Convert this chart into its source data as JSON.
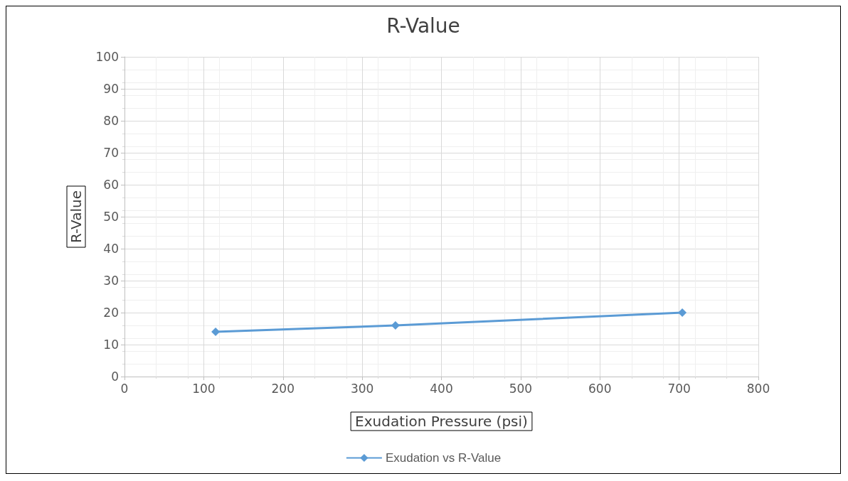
{
  "chart_data": {
    "type": "line",
    "title": "R-Value",
    "xlabel": "Exudation Pressure (psi)",
    "ylabel": "R-Value",
    "x": [
      115,
      342,
      704
    ],
    "series": [
      {
        "name": "Exudation vs R-Value",
        "color": "#5b9bd5",
        "values": [
          14,
          16,
          20
        ]
      }
    ],
    "xlim": [
      0,
      800
    ],
    "xticks": [
      0,
      100,
      200,
      300,
      400,
      500,
      600,
      700,
      800
    ],
    "ylim": [
      0,
      100
    ],
    "yticks": [
      0,
      10,
      20,
      30,
      40,
      50,
      60,
      70,
      80,
      90,
      100
    ],
    "grid": true,
    "legend": "bottom",
    "marker": "diamond",
    "line_style": "solid"
  }
}
